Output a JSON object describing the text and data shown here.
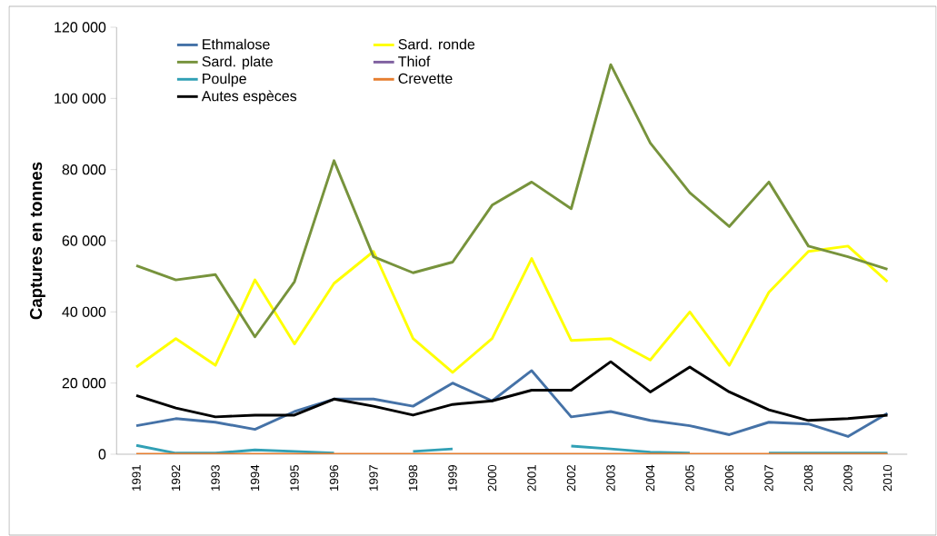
{
  "chart_data": {
    "type": "line",
    "ylabel": "Captures en tonnes",
    "categories": [
      "1991",
      "1992",
      "1993",
      "1994",
      "1995",
      "1996",
      "1997",
      "1998",
      "1999",
      "2000",
      "2001",
      "2002",
      "2003",
      "2004",
      "2005",
      "2006",
      "2007",
      "2008",
      "2009",
      "2010"
    ],
    "ylim": [
      0,
      120000
    ],
    "yticks": [
      0,
      {
        "value": 20000,
        "label": "20 000"
      },
      {
        "value": 40000,
        "label": "40 000"
      },
      {
        "value": 60000,
        "label": "60 000"
      },
      {
        "value": 80000,
        "label": "80 000"
      },
      {
        "value": 100000,
        "label": "100 000"
      },
      {
        "value": 120000,
        "label": "120 000"
      }
    ],
    "grid": false,
    "legend": "top left",
    "marker": "none",
    "line_style": "solid",
    "series": [
      {
        "name": "Ethmalose",
        "color": "#4572a7",
        "values": [
          8000,
          10000,
          9000,
          7000,
          12000,
          15500,
          15500,
          13500,
          20000,
          15000,
          23500,
          10500,
          12000,
          9500,
          8000,
          5500,
          9000,
          8500,
          5000,
          11500
        ]
      },
      {
        "name": "Sard. ronde",
        "color": "#ffff00",
        "values": [
          24500,
          32500,
          25000,
          49000,
          31000,
          48000,
          57000,
          32500,
          23000,
          32500,
          55000,
          32000,
          32500,
          26500,
          40000,
          25000,
          45500,
          57000,
          58500,
          48500
        ]
      },
      {
        "name": "Sard. plate",
        "color": "#77933c",
        "values": [
          53000,
          49000,
          50500,
          33000,
          48500,
          82500,
          55500,
          51000,
          54000,
          70000,
          76500,
          69000,
          109500,
          87500,
          73500,
          64000,
          76500,
          58500,
          55500,
          52000
        ]
      },
      {
        "name": "Thiof",
        "color": "#7f60a0",
        "values": [
          null,
          null,
          null,
          null,
          null,
          null,
          null,
          null,
          null,
          null,
          null,
          null,
          null,
          null,
          null,
          null,
          null,
          null,
          null,
          null
        ]
      },
      {
        "name": "Poulpe",
        "color": "#31a0b5",
        "values": [
          2500,
          300,
          300,
          1200,
          800,
          300,
          null,
          800,
          1500,
          null,
          null,
          2300,
          1500,
          600,
          300,
          null,
          300,
          300,
          300,
          300
        ]
      },
      {
        "name": "Crevette",
        "color": "#e67e30",
        "values": [
          0,
          0,
          0,
          0,
          0,
          0,
          0,
          0,
          0,
          0,
          0,
          0,
          0,
          0,
          0,
          0,
          0,
          0,
          0,
          0
        ]
      },
      {
        "name": "Autes espèces",
        "color": "#000000",
        "values": [
          16500,
          13000,
          10500,
          11000,
          11000,
          15500,
          13500,
          11000,
          14000,
          15000,
          18000,
          18000,
          26000,
          17500,
          24500,
          17500,
          12500,
          9500,
          10000,
          11000
        ]
      }
    ]
  }
}
